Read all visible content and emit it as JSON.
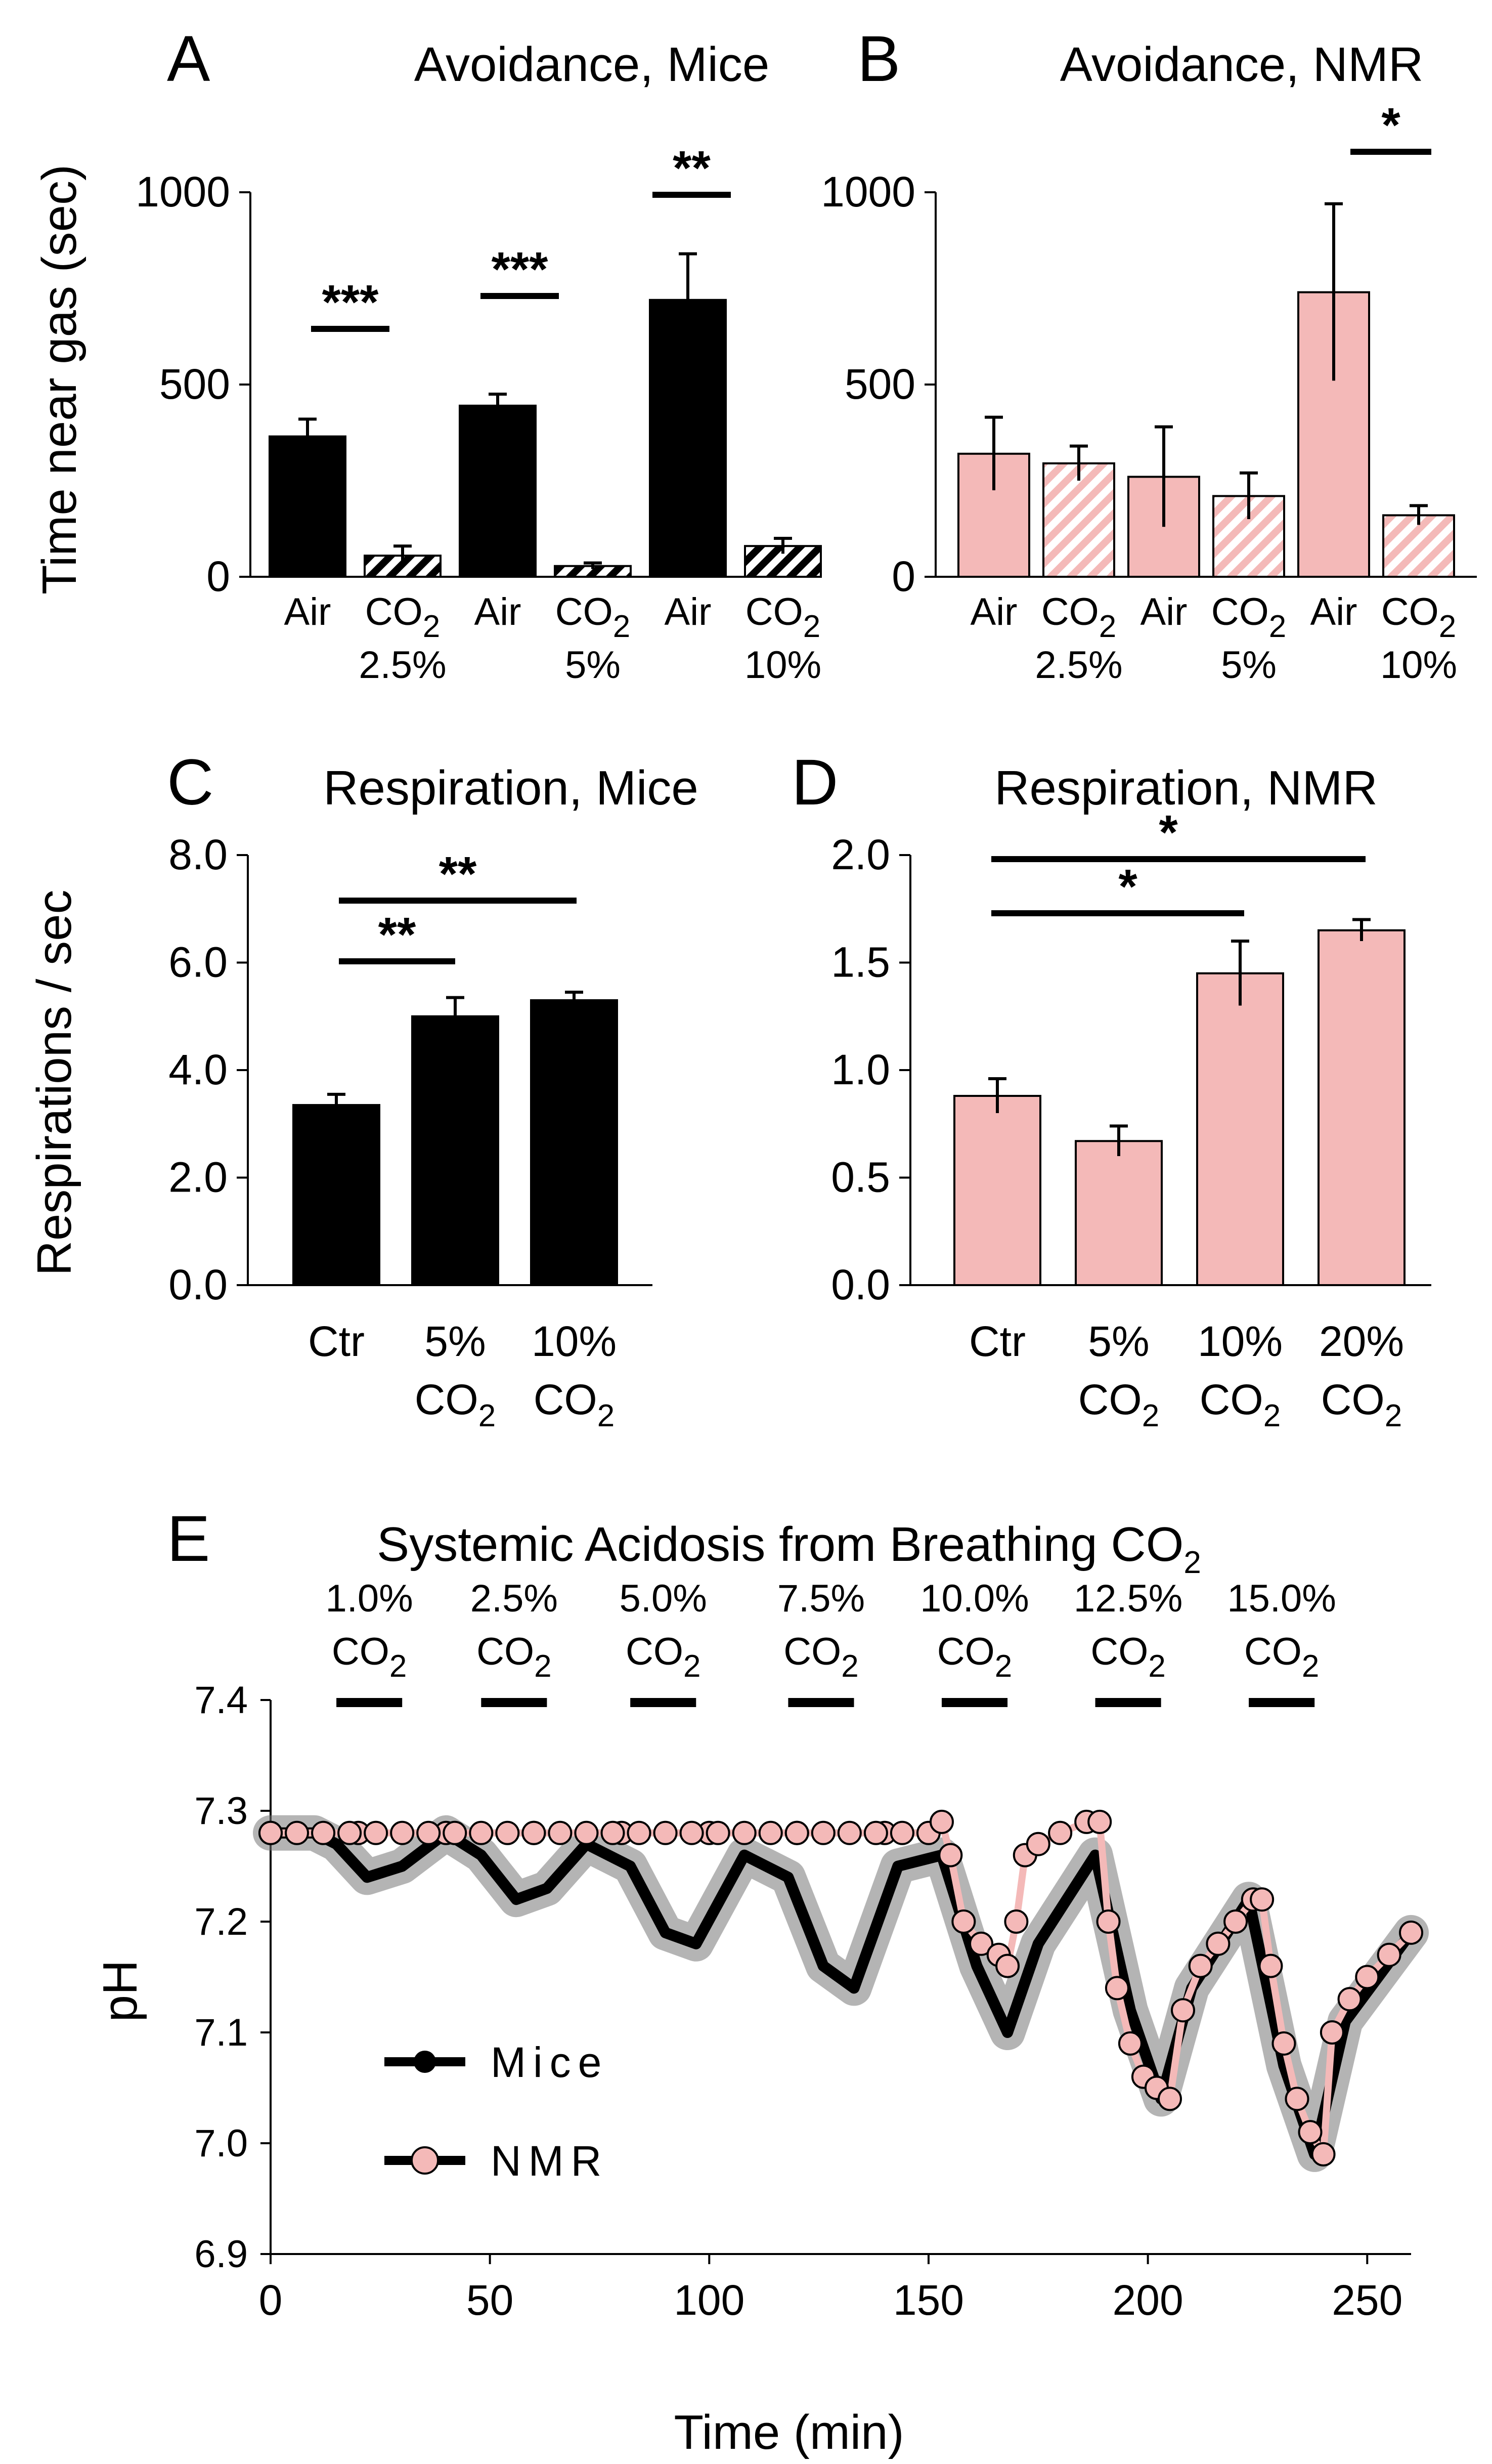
{
  "chart_data": [
    {
      "panel": "A",
      "type": "bar",
      "title": "Avoidance, Mice",
      "ylabel": "Time near gas (sec)",
      "ylim": [
        0,
        1000
      ],
      "yticks": [
        "0",
        "500",
        "1000"
      ],
      "categories": [
        "Air",
        "CO2",
        "Air",
        "CO2",
        "Air",
        "CO2"
      ],
      "group_labels": [
        "2.5%",
        "5%",
        "10%"
      ],
      "values": [
        365,
        55,
        445,
        28,
        720,
        80
      ],
      "errors": [
        45,
        25,
        30,
        8,
        120,
        20
      ],
      "hatched": [
        false,
        true,
        false,
        true,
        false,
        true
      ],
      "significance": [
        "***",
        "***",
        "**"
      ],
      "color": "#000000"
    },
    {
      "panel": "B",
      "type": "bar",
      "title": "Avoidance, NMR",
      "ylim": [
        0,
        1000
      ],
      "yticks": [
        "0",
        "500",
        "1000"
      ],
      "categories": [
        "Air",
        "CO2",
        "Air",
        "CO2",
        "Air",
        "CO2"
      ],
      "group_labels": [
        "2.5%",
        "5%",
        "10%"
      ],
      "values": [
        320,
        295,
        260,
        210,
        740,
        160
      ],
      "errors": [
        95,
        45,
        130,
        60,
        230,
        25
      ],
      "hatched": [
        false,
        true,
        false,
        true,
        false,
        true
      ],
      "significance": [
        "*"
      ],
      "color": "#f4b9b8"
    },
    {
      "panel": "C",
      "type": "bar",
      "title": "Respiration, Mice",
      "ylabel": "Respirations / sec",
      "ylim": [
        0,
        8
      ],
      "yticks": [
        "0.0",
        "2.0",
        "4.0",
        "6.0",
        "8.0"
      ],
      "categories": [
        {
          "line1": "Ctr",
          "line2": ""
        },
        {
          "line1": "5%",
          "line2": "CO2"
        },
        {
          "line1": "10%",
          "line2": "CO2"
        }
      ],
      "values": [
        3.35,
        5.0,
        5.3
      ],
      "errors": [
        0.2,
        0.35,
        0.15
      ],
      "significance": [
        "**",
        "**"
      ],
      "color": "#000000"
    },
    {
      "panel": "D",
      "type": "bar",
      "title": "Respiration, NMR",
      "ylim": [
        0,
        2
      ],
      "yticks": [
        "0.0",
        "0.5",
        "1.0",
        "1.5",
        "2.0"
      ],
      "categories": [
        {
          "line1": "Ctr",
          "line2": ""
        },
        {
          "line1": "5%",
          "line2": "CO2"
        },
        {
          "line1": "10%",
          "line2": "CO2"
        },
        {
          "line1": "20%",
          "line2": "CO2"
        }
      ],
      "values": [
        0.88,
        0.67,
        1.45,
        1.65
      ],
      "errors": [
        0.08,
        0.07,
        0.15,
        0.05
      ],
      "significance": [
        "*",
        "*"
      ],
      "color": "#f4b9b8"
    },
    {
      "panel": "E",
      "type": "line",
      "title": "Systemic Acidosis from Breathing CO2",
      "xlabel": "Time (min)",
      "ylabel": "pH",
      "xlim": [
        0,
        260
      ],
      "ylim": [
        6.9,
        7.4
      ],
      "xticks": [
        "0",
        "50",
        "100",
        "150",
        "200",
        "250"
      ],
      "yticks": [
        "6.9",
        "7.0",
        "7.1",
        "7.2",
        "7.3",
        "7.4"
      ],
      "gas_epochs": [
        {
          "label": "1.0%",
          "start": 15,
          "end": 30
        },
        {
          "label": "2.5%",
          "start": 48,
          "end": 63
        },
        {
          "label": "5.0%",
          "start": 82,
          "end": 97
        },
        {
          "label": "7.5%",
          "start": 118,
          "end": 133
        },
        {
          "label": "10.0%",
          "start": 153,
          "end": 168
        },
        {
          "label": "12.5%",
          "start": 188,
          "end": 203
        },
        {
          "label": "15.0%",
          "start": 223,
          "end": 238
        }
      ],
      "gas_sublabel": "CO2",
      "legend": [
        "Mice",
        "NMR"
      ],
      "legend_position": "lower-left",
      "series": [
        {
          "name": "Mice",
          "color": "#000000",
          "x": [
            0,
            10,
            15,
            22,
            30,
            40,
            48,
            56,
            63,
            72,
            82,
            90,
            97,
            108,
            118,
            126,
            133,
            143,
            153,
            161,
            168,
            175,
            188,
            196,
            203,
            210,
            223,
            231,
            238,
            245,
            260
          ],
          "y": [
            7.28,
            7.28,
            7.27,
            7.24,
            7.25,
            7.28,
            7.26,
            7.22,
            7.23,
            7.27,
            7.25,
            7.19,
            7.18,
            7.26,
            7.24,
            7.16,
            7.14,
            7.25,
            7.26,
            7.16,
            7.1,
            7.18,
            7.26,
            7.12,
            7.04,
            7.14,
            7.22,
            7.07,
            6.99,
            7.11,
            7.19
          ]
        },
        {
          "name": "NMR",
          "color": "#f4b9b8",
          "x": [
            0,
            20,
            40,
            60,
            80,
            100,
            120,
            140,
            150,
            153,
            155,
            158,
            162,
            166,
            168,
            170,
            172,
            175,
            180,
            186,
            189,
            191,
            193,
            196,
            199,
            202,
            205,
            208,
            212,
            216,
            220,
            224,
            226,
            228,
            231,
            234,
            237,
            240,
            242,
            246,
            250,
            255,
            260
          ],
          "y": [
            7.28,
            7.28,
            7.28,
            7.28,
            7.28,
            7.28,
            7.28,
            7.28,
            7.28,
            7.29,
            7.26,
            7.2,
            7.18,
            7.17,
            7.16,
            7.2,
            7.26,
            7.27,
            7.28,
            7.29,
            7.29,
            7.2,
            7.14,
            7.09,
            7.06,
            7.05,
            7.04,
            7.12,
            7.16,
            7.18,
            7.2,
            7.22,
            7.22,
            7.16,
            7.09,
            7.04,
            7.01,
            6.99,
            7.1,
            7.13,
            7.15,
            7.17,
            7.19
          ]
        }
      ]
    }
  ]
}
